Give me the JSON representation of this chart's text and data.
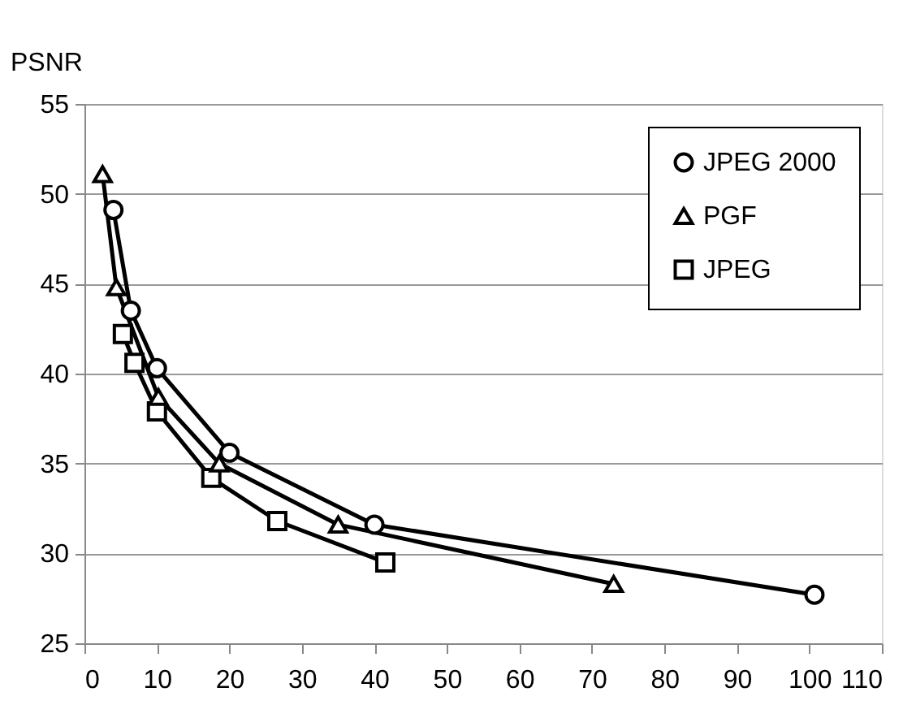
{
  "chart_data": {
    "type": "line",
    "ylabel": "PSNR",
    "series": [
      {
        "name": "JPEG 2000",
        "color": "#000000",
        "marker": "circle",
        "x": [
          4,
          6.4,
          10,
          20,
          40,
          100.7
        ],
        "values": [
          49.1,
          43.5,
          40.3,
          35.6,
          31.6,
          27.7
        ]
      },
      {
        "name": "PGF",
        "color": "#000000",
        "marker": "triangle",
        "x": [
          2.5,
          4.4,
          10.2,
          18.6,
          35,
          73
        ],
        "values": [
          51.1,
          44.8,
          38.7,
          35.0,
          31.6,
          28.3
        ]
      },
      {
        "name": "JPEG",
        "color": "#000000",
        "marker": "square",
        "x": [
          5.3,
          6.9,
          10,
          17.5,
          26.6,
          41.5
        ],
        "values": [
          42.2,
          40.6,
          37.9,
          34.2,
          31.8,
          29.5
        ]
      }
    ],
    "xlim": [
      0,
      110
    ],
    "xticks": [
      0,
      10,
      20,
      30,
      40,
      50,
      60,
      70,
      80,
      90,
      100,
      110
    ],
    "ylim": [
      25,
      55
    ],
    "yticks": [
      25,
      30,
      35,
      40,
      45,
      50,
      55
    ],
    "grid": "y",
    "legend": "top right",
    "line_style": "solid"
  }
}
